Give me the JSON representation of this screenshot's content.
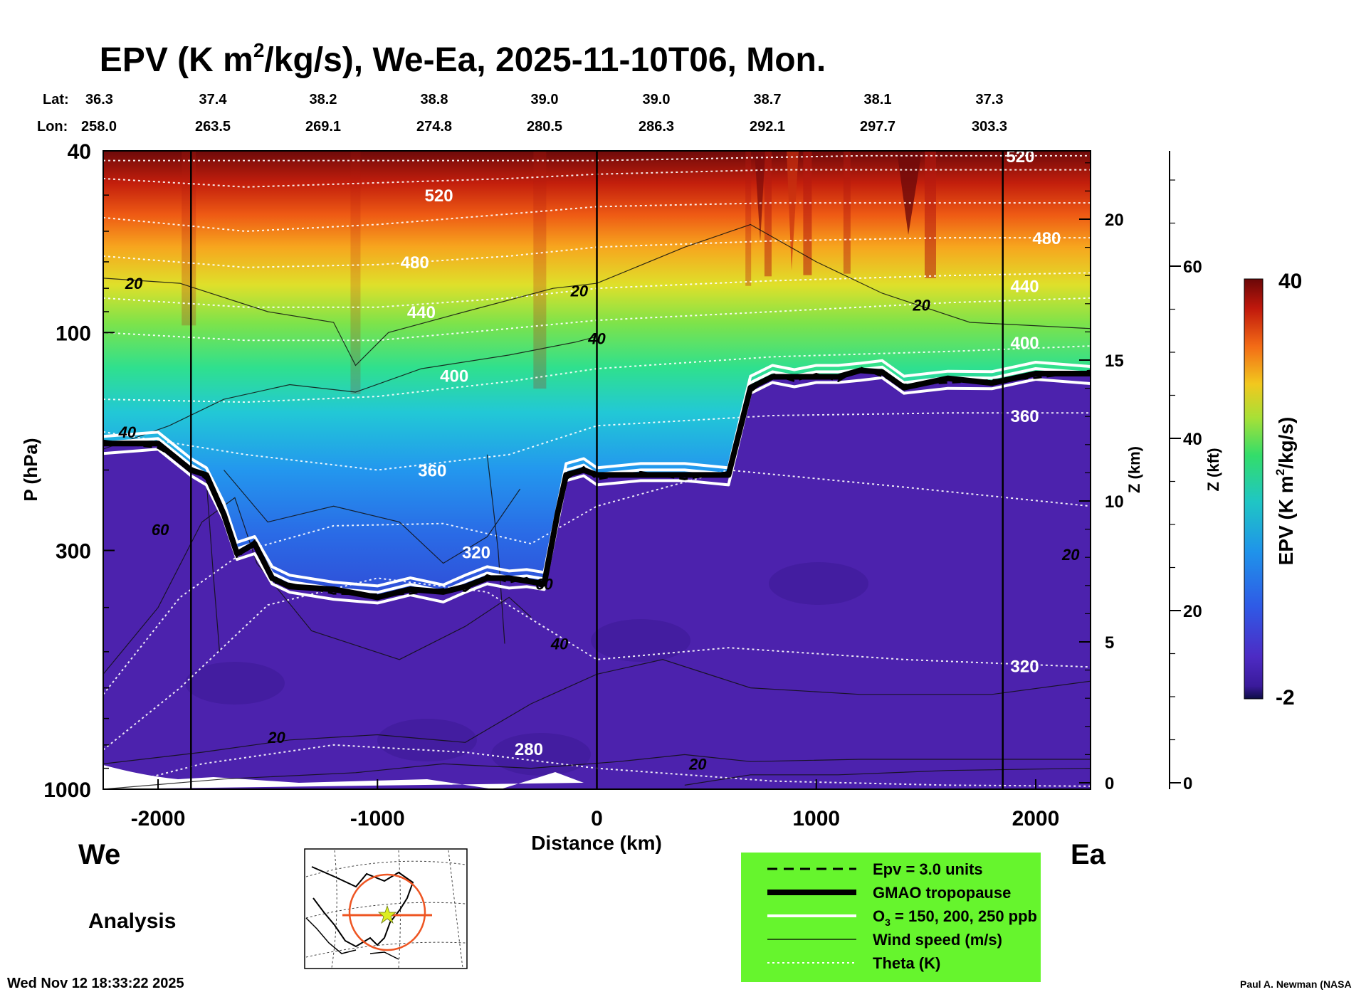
{
  "chart_data": {
    "type": "heatmap",
    "title_parts": [
      "EPV (K m",
      "2",
      "/kg/s), We-Ea, 2025-11-10T06, Mon."
    ],
    "lat_label": "Lat:",
    "lon_label": "Lon:",
    "lat_values": [
      "36.3",
      "37.4",
      "38.2",
      "38.8",
      "39.0",
      "39.0",
      "38.7",
      "38.1",
      "37.3"
    ],
    "lon_values": [
      "258.0",
      "263.5",
      "269.1",
      "274.8",
      "280.5",
      "286.3",
      "292.1",
      "297.7",
      "303.3"
    ],
    "xlabel": "Distance (km)",
    "ylabel": "P (hPa)",
    "z_km_label": "Z (km)",
    "z_kft_label": "Z (kft)",
    "xlim": [
      -2250,
      2250
    ],
    "ylim_hpa": [
      1000,
      40
    ],
    "x_ticks": [
      -2000,
      -1000,
      0,
      1000,
      2000
    ],
    "x_tick_labels": [
      "-2000",
      "-1000",
      "0",
      "1000",
      "2000"
    ],
    "p_ticks": [
      40,
      100,
      300,
      1000
    ],
    "p_tick_labels": [
      "40",
      "100",
      "300",
      "1000"
    ],
    "z_km_ticks": [
      0,
      5,
      10,
      15,
      20
    ],
    "z_km_tick_labels": [
      "0",
      "5",
      "10",
      "15",
      "20"
    ],
    "z_kft_ticks": [
      0,
      20,
      40,
      60
    ],
    "z_kft_tick_labels": [
      "0",
      "20",
      "40",
      "60"
    ],
    "colorbar": {
      "label_parts": [
        "EPV (K m",
        "2",
        "/kg/s)"
      ],
      "min": -2,
      "max": 40,
      "min_label": "-2",
      "max_label": "40"
    },
    "tropopause_pressure_hpa": {
      "x": [
        -2250,
        -2000,
        -1850,
        -1780,
        -1700,
        -1640,
        -1560,
        -1480,
        -1400,
        -1200,
        -1000,
        -850,
        -700,
        -600,
        -500,
        -400,
        -320,
        -240,
        -180,
        -140,
        -60,
        0,
        200,
        400,
        600,
        700,
        800,
        900,
        1000,
        1100,
        1200,
        1300,
        1400,
        1600,
        1800,
        2000,
        2250
      ],
      "p": [
        175,
        175,
        200,
        205,
        250,
        305,
        290,
        345,
        360,
        365,
        380,
        365,
        370,
        360,
        345,
        345,
        350,
        355,
        250,
        205,
        200,
        205,
        205,
        205,
        205,
        132,
        125,
        125,
        125,
        125,
        121,
        122,
        132,
        126,
        129,
        123,
        123
      ]
    },
    "theta_levels": [
      {
        "label": "280",
        "label_x": -310,
        "label_p": 815
      },
      {
        "label": "320",
        "label_x": 1950,
        "label_p": 537
      },
      {
        "label": "320",
        "label_x": -550,
        "label_p": 302
      },
      {
        "label": "360",
        "label_x": 1950,
        "label_p": 152
      },
      {
        "label": "360",
        "label_x": -750,
        "label_p": 200
      },
      {
        "label": "400",
        "label_x": 1950,
        "label_p": 105
      },
      {
        "label": "400",
        "label_x": -650,
        "label_p": 124
      },
      {
        "label": "440",
        "label_x": 1950,
        "label_p": 79
      },
      {
        "label": "440",
        "label_x": -800,
        "label_p": 90
      },
      {
        "label": "480",
        "label_x": 2050,
        "label_p": 62
      },
      {
        "label": "480",
        "label_x": -830,
        "label_p": 70
      },
      {
        "label": "520",
        "label_x": -720,
        "label_p": 50
      },
      {
        "label": "520",
        "label_x": 1930,
        "label_p": 41
      }
    ],
    "wind_labels": [
      {
        "label": "20",
        "x": -2110,
        "p": 78
      },
      {
        "label": "20",
        "x": -80,
        "p": 81
      },
      {
        "label": "20",
        "x": 1480,
        "p": 87
      },
      {
        "label": "40",
        "x": 0,
        "p": 103
      },
      {
        "label": "40",
        "x": -2140,
        "p": 165
      },
      {
        "label": "60",
        "x": -1990,
        "p": 270
      },
      {
        "label": "60",
        "x": -240,
        "p": 355
      },
      {
        "label": "40",
        "x": -170,
        "p": 480
      },
      {
        "label": "20",
        "x": 2160,
        "p": 306
      },
      {
        "label": "20",
        "x": -1460,
        "p": 770
      },
      {
        "label": "20",
        "x": 460,
        "p": 880
      }
    ],
    "legend": [
      {
        "style": "dashed",
        "text": "Epv = 3.0 units"
      },
      {
        "style": "thick-black",
        "text": "GMAO tropopause"
      },
      {
        "style": "white",
        "text_parts": [
          "O",
          "3",
          " = 150, 200, 250 ppb"
        ]
      },
      {
        "style": "thin-black",
        "text": "Wind speed (m/s)"
      },
      {
        "style": "dotted-white",
        "text": "Theta (K)"
      }
    ],
    "legend_color": "#66f52d",
    "direction_left": "We",
    "direction_right": "Ea",
    "analysis_label": "Analysis",
    "timestamp": "Wed Nov 12 18:33:22 2025",
    "credit": "Paul A. Newman (NASA"
  }
}
